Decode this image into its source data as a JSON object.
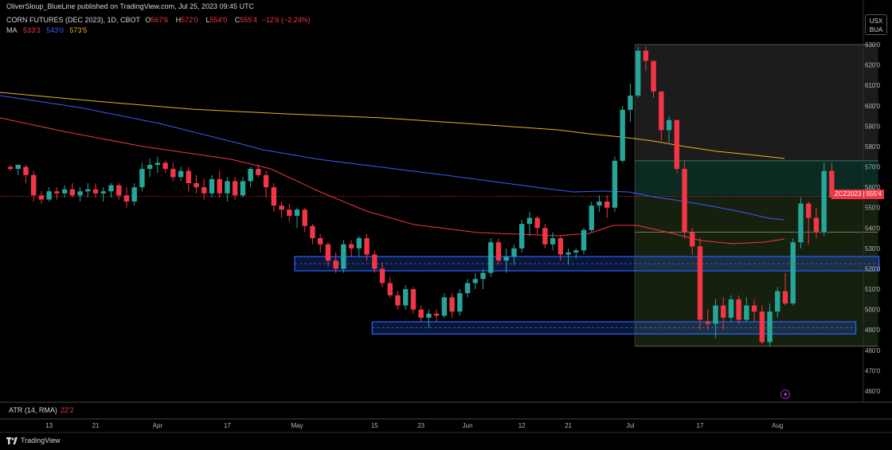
{
  "caption": "OliverSloup_BlueLine published on TradingView.com, Jul 25, 2023 09:45 UTC",
  "symbol": {
    "title": "CORN FUTURES (DEC 2023), 1D, CBOT",
    "open_label": "O",
    "open": "567'6",
    "high_label": "H",
    "high": "572'0",
    "low_label": "L",
    "low": "554'0",
    "close_label": "C",
    "close": "555'4",
    "change": "−12'6 (−2.24%)"
  },
  "ma": {
    "label": "MA",
    "v1": "533'3",
    "v2": "543'0",
    "v3": "573'5",
    "c1": "#f23645",
    "c2": "#3d5afe",
    "c3": "#e6b422"
  },
  "currency": {
    "line1": "USX",
    "line2": "BUA"
  },
  "atr": {
    "label": "ATR (14, RMA)",
    "value": "22'2"
  },
  "brand": "TradingView",
  "last_tag": {
    "symbol": "ZCZ2023",
    "price": "555'4"
  },
  "colors": {
    "up": "#26a69a",
    "down": "#f23645",
    "zone": "#2962ff"
  },
  "chart_data": {
    "type": "candlestick",
    "ylim": [
      455,
      635
    ],
    "y_ticks": [
      "630'0",
      "620'0",
      "610'0",
      "600'0",
      "590'0",
      "580'0",
      "570'0",
      "560'0",
      "550'0",
      "540'0",
      "530'0",
      "520'0",
      "510'0",
      "500'0",
      "490'0",
      "480'0",
      "470'0",
      "460'0"
    ],
    "y_tick_values": [
      630,
      620,
      610,
      600,
      590,
      580,
      570,
      560,
      550,
      540,
      530,
      520,
      510,
      500,
      490,
      480,
      470,
      460
    ],
    "x_ticks": [
      {
        "label": "13",
        "i": 5
      },
      {
        "label": "21",
        "i": 11
      },
      {
        "label": "Apr",
        "i": 19
      },
      {
        "label": "17",
        "i": 28
      },
      {
        "label": "May",
        "i": 37
      },
      {
        "label": "15",
        "i": 47
      },
      {
        "label": "23",
        "i": 53
      },
      {
        "label": "Jun",
        "i": 59
      },
      {
        "label": "12",
        "i": 66
      },
      {
        "label": "21",
        "i": 72
      },
      {
        "label": "Jul",
        "i": 80
      },
      {
        "label": "17",
        "i": 89
      },
      {
        "label": "Aug",
        "i": 99
      }
    ],
    "candles": [
      [
        570,
        571,
        568,
        569
      ],
      [
        569,
        570,
        566,
        571
      ],
      [
        570,
        571,
        562,
        566
      ],
      [
        566,
        568,
        553,
        556
      ],
      [
        556,
        558,
        552,
        554
      ],
      [
        554,
        560,
        553,
        558
      ],
      [
        558,
        560,
        554,
        557
      ],
      [
        557,
        561,
        555,
        559
      ],
      [
        559,
        562,
        555,
        556
      ],
      [
        556,
        560,
        553,
        558
      ],
      [
        558,
        562,
        555,
        559
      ],
      [
        559,
        562,
        555,
        557
      ],
      [
        557,
        560,
        553,
        558
      ],
      [
        558,
        562,
        555,
        561
      ],
      [
        561,
        562,
        554,
        556
      ],
      [
        556,
        560,
        550,
        553
      ],
      [
        553,
        562,
        551,
        560
      ],
      [
        560,
        572,
        558,
        569
      ],
      [
        569,
        574,
        565,
        571
      ],
      [
        571,
        575,
        567,
        572
      ],
      [
        572,
        573,
        567,
        569
      ],
      [
        569,
        572,
        563,
        565
      ],
      [
        565,
        570,
        563,
        568
      ],
      [
        568,
        570,
        558,
        562
      ],
      [
        562,
        566,
        557,
        560
      ],
      [
        560,
        564,
        554,
        557
      ],
      [
        557,
        566,
        555,
        564
      ],
      [
        564,
        568,
        555,
        557
      ],
      [
        557,
        565,
        553,
        563
      ],
      [
        563,
        565,
        554,
        556
      ],
      [
        556,
        565,
        555,
        563
      ],
      [
        563,
        570,
        560,
        569
      ],
      [
        569,
        571,
        565,
        566
      ],
      [
        566,
        568,
        555,
        560
      ],
      [
        560,
        562,
        548,
        551
      ],
      [
        551,
        553,
        545,
        549
      ],
      [
        549,
        552,
        543,
        546
      ],
      [
        546,
        550,
        540,
        549
      ],
      [
        549,
        550,
        538,
        541
      ],
      [
        541,
        542,
        532,
        535
      ],
      [
        535,
        537,
        528,
        532
      ],
      [
        532,
        533,
        521,
        524
      ],
      [
        524,
        528,
        518,
        520
      ],
      [
        520,
        534,
        518,
        532
      ],
      [
        532,
        534,
        526,
        530
      ],
      [
        530,
        536,
        526,
        535
      ],
      [
        535,
        537,
        524,
        527
      ],
      [
        527,
        529,
        518,
        520
      ],
      [
        520,
        523,
        511,
        513
      ],
      [
        513,
        516,
        506,
        507
      ],
      [
        507,
        509,
        500,
        502
      ],
      [
        502,
        512,
        500,
        510
      ],
      [
        510,
        511,
        498,
        500
      ],
      [
        500,
        502,
        494,
        496
      ],
      [
        496,
        500,
        491,
        498
      ],
      [
        498,
        500,
        494,
        497
      ],
      [
        497,
        508,
        496,
        506
      ],
      [
        506,
        508,
        496,
        499
      ],
      [
        499,
        510,
        497,
        508
      ],
      [
        508,
        515,
        506,
        513
      ],
      [
        513,
        518,
        510,
        515
      ],
      [
        515,
        520,
        510,
        518
      ],
      [
        518,
        535,
        516,
        533
      ],
      [
        533,
        535,
        522,
        524
      ],
      [
        524,
        530,
        518,
        526
      ],
      [
        526,
        532,
        522,
        530
      ],
      [
        530,
        544,
        528,
        542
      ],
      [
        542,
        548,
        536,
        545
      ],
      [
        545,
        546,
        537,
        540
      ],
      [
        540,
        542,
        530,
        532
      ],
      [
        532,
        538,
        529,
        535
      ],
      [
        535,
        536,
        524,
        527
      ],
      [
        527,
        530,
        522,
        528
      ],
      [
        528,
        530,
        525,
        529
      ],
      [
        529,
        540,
        527,
        539
      ],
      [
        539,
        553,
        538,
        551
      ],
      [
        551,
        556,
        548,
        553
      ],
      [
        553,
        556,
        545,
        550
      ],
      [
        550,
        575,
        548,
        573
      ],
      [
        573,
        600,
        572,
        598
      ],
      [
        598,
        611,
        592,
        605
      ],
      [
        605,
        629,
        604,
        627
      ],
      [
        627,
        629,
        617,
        622
      ],
      [
        622,
        622,
        604,
        607
      ],
      [
        607,
        607,
        583,
        588
      ],
      [
        588,
        595,
        582,
        593
      ],
      [
        593,
        593,
        567,
        569
      ],
      [
        569,
        573,
        535,
        538
      ],
      [
        538,
        540,
        527,
        531
      ],
      [
        531,
        535,
        490,
        495
      ],
      [
        494,
        500,
        490,
        493
      ],
      [
        493,
        505,
        486,
        502
      ],
      [
        502,
        506,
        490,
        496
      ],
      [
        496,
        507,
        494,
        505
      ],
      [
        505,
        507,
        493,
        495
      ],
      [
        495,
        506,
        494,
        502
      ],
      [
        502,
        505,
        494,
        499
      ],
      [
        499,
        502,
        483,
        484
      ],
      [
        484,
        503,
        482,
        499
      ],
      [
        499,
        511,
        496,
        509
      ],
      [
        509,
        518,
        502,
        503
      ],
      [
        503,
        535,
        502,
        533
      ],
      [
        533,
        555,
        530,
        552
      ],
      [
        552,
        553,
        532,
        545
      ],
      [
        545,
        550,
        535,
        538
      ],
      [
        538,
        572,
        536,
        568
      ],
      [
        568,
        572,
        554,
        555
      ]
    ],
    "ma_series": [
      {
        "name": "MA",
        "value": "533'3",
        "start": [
          590,
          5
        ],
        "end": [
          533.3,
          106
        ],
        "ctrl": [
          [
            560,
            38
          ],
          [
            545,
            75
          ],
          [
            538,
            90
          ],
          [
            540,
            95
          ]
        ]
      },
      {
        "name": "MA",
        "value": "543'0",
        "start": [
          605,
          5
        ],
        "end": [
          543,
          106
        ]
      },
      {
        "name": "MA",
        "value": "573'5",
        "start": [
          606,
          5
        ],
        "end": [
          573.5,
          106
        ]
      }
    ],
    "zones": [
      {
        "y_top": 526,
        "y_bottom": 519,
        "x_from": 37,
        "x_to": 112
      },
      {
        "y_top": 494,
        "y_bottom": 488,
        "x_from": 47,
        "x_to": 109
      }
    ],
    "measure_box": {
      "x_from": 81,
      "x_to": 112,
      "y_top": 630,
      "y_bottom": 482,
      "levels": [
        573,
        556,
        538
      ]
    },
    "last_price": 555.5
  }
}
